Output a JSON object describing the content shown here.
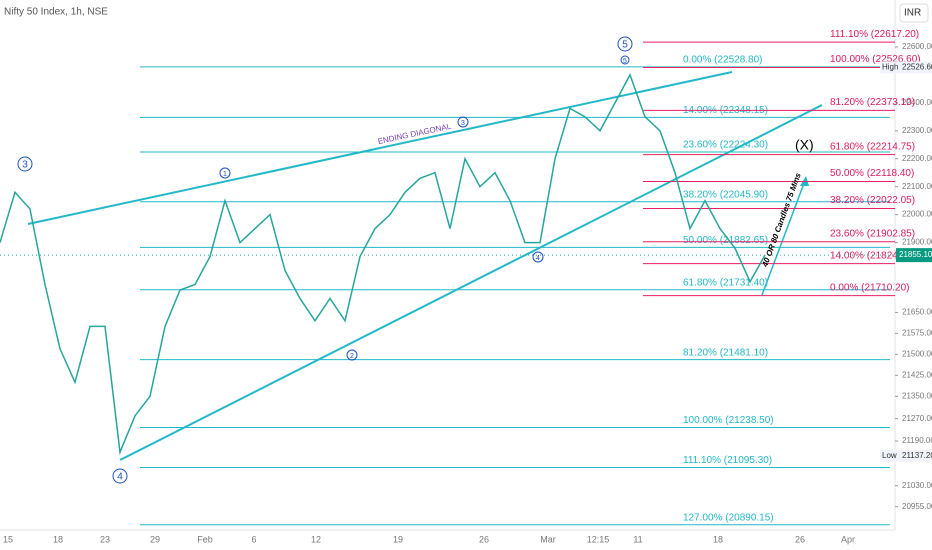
{
  "chart_data": {
    "type": "line",
    "title": "Nifty 50 Index, 1h, NSE",
    "currency": "INR",
    "ylim": [
      20800,
      22768
    ],
    "yticks": [
      {
        "value": 22600,
        "label": "22600.00"
      },
      {
        "value": 22400,
        "label": "22400.00"
      },
      {
        "value": 22300,
        "label": "22300.00"
      },
      {
        "value": 22200,
        "label": "22200.00"
      },
      {
        "value": 22100,
        "label": "22100.00"
      },
      {
        "value": 22000,
        "label": "22000.00"
      },
      {
        "value": 21900,
        "label": "21900.00"
      },
      {
        "value": 21650,
        "label": "21650.00"
      },
      {
        "value": 21575,
        "label": "21575.00"
      },
      {
        "value": 21500,
        "label": "21500.00"
      },
      {
        "value": 21425,
        "label": "21425.00"
      },
      {
        "value": 21350,
        "label": "21350.00"
      },
      {
        "value": 21270,
        "label": "21270.00"
      },
      {
        "value": 21190,
        "label": "21190.00"
      },
      {
        "value": 21030,
        "label": "21030.00"
      },
      {
        "value": 20955,
        "label": "20955.00"
      }
    ],
    "x_labels": [
      "15",
      "18",
      "23",
      "29",
      "Feb",
      "6",
      "12",
      "19",
      "26",
      "Mar",
      "12:15",
      "11",
      "18",
      "26",
      "Apr"
    ],
    "series": [
      {
        "name": "Nifty 50",
        "color": "#26a69a",
        "values": [
          21900,
          22080,
          22020,
          21750,
          21520,
          21400,
          21600,
          21600,
          21150,
          21280,
          21350,
          21600,
          21730,
          21750,
          21850,
          22050,
          21900,
          21950,
          22000,
          21800,
          21700,
          21620,
          21700,
          21620,
          21850,
          21950,
          22000,
          22080,
          22130,
          22150,
          21950,
          22200,
          22100,
          22150,
          22050,
          21900,
          21900,
          22200,
          22380,
          22350,
          22300,
          22400,
          22500,
          22350,
          22300,
          22150,
          21950,
          22050,
          21950,
          21880,
          21760,
          21855
        ]
      }
    ],
    "high": {
      "name": "High",
      "value": 22526.6,
      "label": "22526.60"
    },
    "low": {
      "name": "Low",
      "value": 21137.2,
      "label": "21137.20"
    },
    "last": {
      "value": 21855.1,
      "label": "21855.10"
    },
    "fib_left": [
      {
        "value": 22528.8,
        "label": "0.00% (22528.80)"
      },
      {
        "value": 22348.15,
        "label": "14.00% (22348.15)"
      },
      {
        "value": 22224.3,
        "label": "23.60% (22224.30)"
      },
      {
        "value": 22045.9,
        "label": "38.20% (22045.90)"
      },
      {
        "value": 21882.65,
        "label": "50.00% (21882.65)"
      },
      {
        "value": 21731.4,
        "label": "61.80% (21731.40)"
      },
      {
        "value": 21481.1,
        "label": "81.20% (21481.10)"
      },
      {
        "value": 21238.5,
        "label": "100.00% (21238.50)"
      },
      {
        "value": 21095.3,
        "label": "111.10% (21095.30)"
      },
      {
        "value": 20890.15,
        "label": "127.00% (20890.15)"
      }
    ],
    "fib_right": [
      {
        "value": 22617.2,
        "label": "111.10% (22617.20)"
      },
      {
        "value": 22526.6,
        "label": "100.00% (22526.60)"
      },
      {
        "value": 22373.1,
        "label": "81.20% (22373.10)"
      },
      {
        "value": 22214.75,
        "label": "61.80% (22214.75)"
      },
      {
        "value": 22118.4,
        "label": "50.00% (22118.40)"
      },
      {
        "value": 22022.05,
        "label": "38.20% (22022.05)"
      },
      {
        "value": 21902.85,
        "label": "23.60% (21902.85)"
      },
      {
        "value": 21824.5,
        "label": "14.00% (21824.50)"
      },
      {
        "value": 21710.2,
        "label": "0.00% (21710.20)"
      }
    ],
    "annotations": [
      "ENDING DIAGONAL",
      "(X)",
      "40 OR 80 Candles 75 Mins"
    ],
    "wave_labels": [
      "3",
      "4",
      "1",
      "2",
      "3",
      "4",
      "5",
      "5"
    ]
  }
}
